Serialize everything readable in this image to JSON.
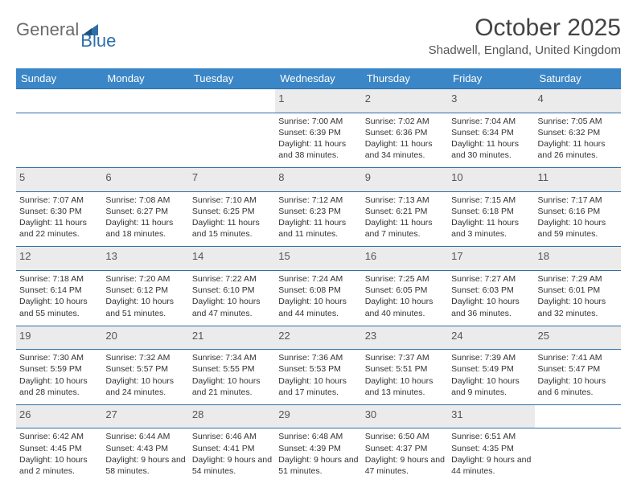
{
  "logo": {
    "part1": "General",
    "part2": "Blue"
  },
  "title": "October 2025",
  "location": "Shadwell, England, United Kingdom",
  "colors": {
    "header_bg": "#3b86c6",
    "rule": "#2f6fa8",
    "daybar": "#ebebeb",
    "text": "#333333"
  },
  "dayHeaders": [
    "Sunday",
    "Monday",
    "Tuesday",
    "Wednesday",
    "Thursday",
    "Friday",
    "Saturday"
  ],
  "weeks": [
    [
      null,
      null,
      null,
      {
        "n": "1",
        "sr": "7:00 AM",
        "ss": "6:39 PM",
        "dl": "11 hours and 38 minutes."
      },
      {
        "n": "2",
        "sr": "7:02 AM",
        "ss": "6:36 PM",
        "dl": "11 hours and 34 minutes."
      },
      {
        "n": "3",
        "sr": "7:04 AM",
        "ss": "6:34 PM",
        "dl": "11 hours and 30 minutes."
      },
      {
        "n": "4",
        "sr": "7:05 AM",
        "ss": "6:32 PM",
        "dl": "11 hours and 26 minutes."
      }
    ],
    [
      {
        "n": "5",
        "sr": "7:07 AM",
        "ss": "6:30 PM",
        "dl": "11 hours and 22 minutes."
      },
      {
        "n": "6",
        "sr": "7:08 AM",
        "ss": "6:27 PM",
        "dl": "11 hours and 18 minutes."
      },
      {
        "n": "7",
        "sr": "7:10 AM",
        "ss": "6:25 PM",
        "dl": "11 hours and 15 minutes."
      },
      {
        "n": "8",
        "sr": "7:12 AM",
        "ss": "6:23 PM",
        "dl": "11 hours and 11 minutes."
      },
      {
        "n": "9",
        "sr": "7:13 AM",
        "ss": "6:21 PM",
        "dl": "11 hours and 7 minutes."
      },
      {
        "n": "10",
        "sr": "7:15 AM",
        "ss": "6:18 PM",
        "dl": "11 hours and 3 minutes."
      },
      {
        "n": "11",
        "sr": "7:17 AM",
        "ss": "6:16 PM",
        "dl": "10 hours and 59 minutes."
      }
    ],
    [
      {
        "n": "12",
        "sr": "7:18 AM",
        "ss": "6:14 PM",
        "dl": "10 hours and 55 minutes."
      },
      {
        "n": "13",
        "sr": "7:20 AM",
        "ss": "6:12 PM",
        "dl": "10 hours and 51 minutes."
      },
      {
        "n": "14",
        "sr": "7:22 AM",
        "ss": "6:10 PM",
        "dl": "10 hours and 47 minutes."
      },
      {
        "n": "15",
        "sr": "7:24 AM",
        "ss": "6:08 PM",
        "dl": "10 hours and 44 minutes."
      },
      {
        "n": "16",
        "sr": "7:25 AM",
        "ss": "6:05 PM",
        "dl": "10 hours and 40 minutes."
      },
      {
        "n": "17",
        "sr": "7:27 AM",
        "ss": "6:03 PM",
        "dl": "10 hours and 36 minutes."
      },
      {
        "n": "18",
        "sr": "7:29 AM",
        "ss": "6:01 PM",
        "dl": "10 hours and 32 minutes."
      }
    ],
    [
      {
        "n": "19",
        "sr": "7:30 AM",
        "ss": "5:59 PM",
        "dl": "10 hours and 28 minutes."
      },
      {
        "n": "20",
        "sr": "7:32 AM",
        "ss": "5:57 PM",
        "dl": "10 hours and 24 minutes."
      },
      {
        "n": "21",
        "sr": "7:34 AM",
        "ss": "5:55 PM",
        "dl": "10 hours and 21 minutes."
      },
      {
        "n": "22",
        "sr": "7:36 AM",
        "ss": "5:53 PM",
        "dl": "10 hours and 17 minutes."
      },
      {
        "n": "23",
        "sr": "7:37 AM",
        "ss": "5:51 PM",
        "dl": "10 hours and 13 minutes."
      },
      {
        "n": "24",
        "sr": "7:39 AM",
        "ss": "5:49 PM",
        "dl": "10 hours and 9 minutes."
      },
      {
        "n": "25",
        "sr": "7:41 AM",
        "ss": "5:47 PM",
        "dl": "10 hours and 6 minutes."
      }
    ],
    [
      {
        "n": "26",
        "sr": "6:42 AM",
        "ss": "4:45 PM",
        "dl": "10 hours and 2 minutes."
      },
      {
        "n": "27",
        "sr": "6:44 AM",
        "ss": "4:43 PM",
        "dl": "9 hours and 58 minutes."
      },
      {
        "n": "28",
        "sr": "6:46 AM",
        "ss": "4:41 PM",
        "dl": "9 hours and 54 minutes."
      },
      {
        "n": "29",
        "sr": "6:48 AM",
        "ss": "4:39 PM",
        "dl": "9 hours and 51 minutes."
      },
      {
        "n": "30",
        "sr": "6:50 AM",
        "ss": "4:37 PM",
        "dl": "9 hours and 47 minutes."
      },
      {
        "n": "31",
        "sr": "6:51 AM",
        "ss": "4:35 PM",
        "dl": "9 hours and 44 minutes."
      },
      null
    ]
  ],
  "labels": {
    "sunrise": "Sunrise: ",
    "sunset": "Sunset: ",
    "daylight": "Daylight: "
  }
}
